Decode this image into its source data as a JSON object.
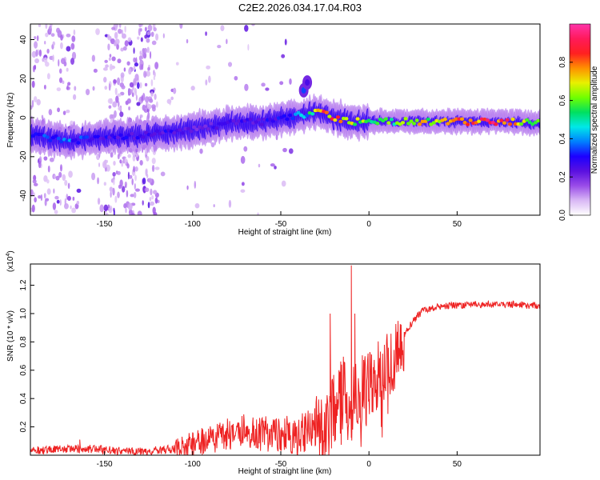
{
  "title": "C2E2.2026.034.17.04.R03",
  "colors": {
    "snr_line": "#ee2222",
    "axis": "#000000",
    "background": "#ffffff",
    "colormap": [
      "#ffffff",
      "#d9b8f5",
      "#9a4de8",
      "#5a10e0",
      "#1c00ff",
      "#0080ff",
      "#00e8e8",
      "#00e060",
      "#70ff00",
      "#e8f000",
      "#ff9000",
      "#ff2020",
      "#ff1a5a",
      "#ff33aa"
    ]
  },
  "chart_data": [
    {
      "type": "heatmap",
      "title": "C2E2.2026.034.17.04.R03",
      "xlabel": "Height of straight line (km)",
      "ylabel": "Frequency (Hz)",
      "xlim": [
        -192,
        97
      ],
      "ylim": [
        -50,
        48
      ],
      "xticks": [
        -150,
        -100,
        -50,
        0,
        50
      ],
      "yticks": [
        -40,
        -20,
        0,
        20,
        40
      ],
      "colorbar": {
        "label": "Normalized spectral amplitude",
        "range": [
          0.0,
          1.0
        ],
        "ticks": [
          0.0,
          0.2,
          0.4,
          0.6,
          0.8
        ]
      },
      "ridge": {
        "description": "frequency centre of the dominant band versus height",
        "height_km": [
          -190,
          -170,
          -150,
          -130,
          -115,
          -100,
          -80,
          -60,
          -45,
          -35,
          -30,
          -25,
          -20,
          -10,
          0,
          20,
          50,
          80,
          95
        ],
        "frequency_hz": [
          -9,
          -12,
          -10,
          -9,
          -8,
          -6,
          -3,
          -2,
          0,
          2,
          3,
          2,
          0,
          -2,
          -2,
          -2,
          -2,
          -2,
          -3
        ],
        "amplitude": [
          0.35,
          0.4,
          0.3,
          0.3,
          0.3,
          0.25,
          0.3,
          0.3,
          0.35,
          0.5,
          0.7,
          0.9,
          0.9,
          0.75,
          0.6,
          0.7,
          0.85,
          0.95,
          0.6
        ]
      },
      "secondary_features": [
        {
          "height_km": -37,
          "frequency_hz": 14,
          "amplitude": 0.35
        },
        {
          "height_km": -35,
          "frequency_hz": 18,
          "amplitude": 0.25
        }
      ]
    },
    {
      "type": "line",
      "xlabel": "Height of straight line (km)",
      "ylabel": "SNR (10 * v/v)",
      "y_scale_label": "(x10",
      "y_scale_exponent": "4",
      "xlim": [
        -192,
        97
      ],
      "ylim": [
        0.0,
        1.35
      ],
      "xticks": [
        -150,
        -100,
        -50,
        0,
        50
      ],
      "yticks": [
        0.2,
        0.4,
        0.6,
        0.8,
        1.0,
        1.2
      ],
      "series": [
        {
          "name": "SNR",
          "x": [
            -192,
            -160,
            -130,
            -110,
            -100,
            -90,
            -80,
            -70,
            -60,
            -50,
            -40,
            -30,
            -25,
            -20,
            -15,
            -10,
            -5,
            0,
            5,
            10,
            15,
            20,
            25,
            30,
            40,
            60,
            80,
            97
          ],
          "y": [
            0.04,
            0.05,
            0.03,
            0.05,
            0.09,
            0.13,
            0.17,
            0.2,
            0.17,
            0.18,
            0.17,
            0.22,
            0.22,
            0.42,
            0.5,
            0.45,
            0.52,
            0.55,
            0.62,
            0.7,
            0.78,
            0.86,
            0.95,
            1.02,
            1.06,
            1.07,
            1.07,
            1.06
          ],
          "spikes": [
            {
              "x": -10,
              "y": 1.34
            },
            {
              "x": -22,
              "y": 1.0
            },
            {
              "x": -8,
              "y": 1.0
            },
            {
              "x": -164,
              "y": 0.11
            }
          ]
        }
      ]
    }
  ]
}
